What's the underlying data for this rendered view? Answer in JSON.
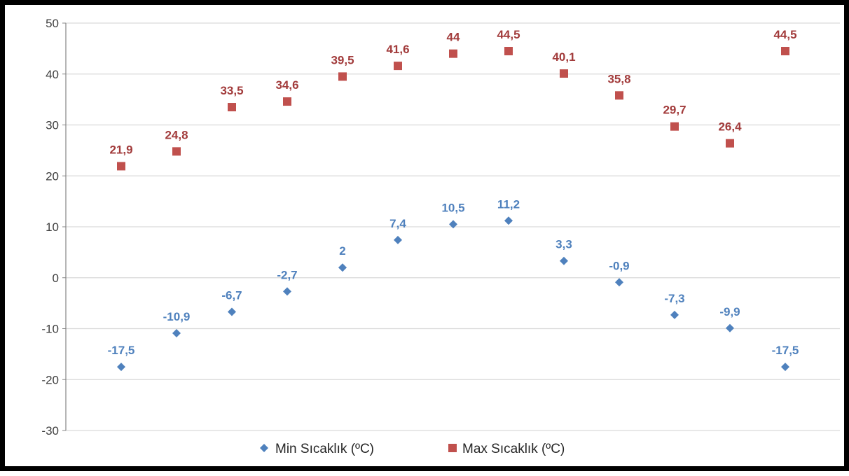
{
  "chart_data": {
    "type": "scatter",
    "title": "",
    "xlabel": "",
    "ylabel": "",
    "ylim": [
      -30,
      50
    ],
    "yticks": [
      50,
      40,
      30,
      20,
      10,
      0,
      -10,
      -20,
      -30
    ],
    "x": [
      1,
      2,
      3,
      4,
      5,
      6,
      7,
      8,
      9,
      10,
      11,
      12,
      13
    ],
    "grid": true,
    "legend_position": "bottom",
    "series": [
      {
        "name": "Min Sıcaklık (ºC)",
        "color": "#4F81BD",
        "marker": "diamond",
        "values": [
          -17.5,
          -10.9,
          -6.7,
          -2.7,
          2,
          7.4,
          10.5,
          11.2,
          3.3,
          -0.9,
          -7.3,
          -9.9,
          -17.5
        ],
        "labels": [
          "-17,5",
          "-10,9",
          "-6,7",
          "-2,7",
          "2",
          "7,4",
          "10,5",
          "11,2",
          "3,3",
          "-0,9",
          "-7,3",
          "-9,9",
          "-17,5"
        ]
      },
      {
        "name": "Max Sıcaklık (ºC)",
        "color": "#C0504D",
        "marker": "square",
        "values": [
          21.9,
          24.8,
          33.5,
          34.6,
          39.5,
          41.6,
          44,
          44.5,
          40.1,
          35.8,
          29.7,
          26.4,
          44.5
        ],
        "labels": [
          "21,9",
          "24,8",
          "33,5",
          "34,6",
          "39,5",
          "41,6",
          "44",
          "44,5",
          "40,1",
          "35,8",
          "29,7",
          "26,4",
          "44,5"
        ]
      }
    ]
  }
}
